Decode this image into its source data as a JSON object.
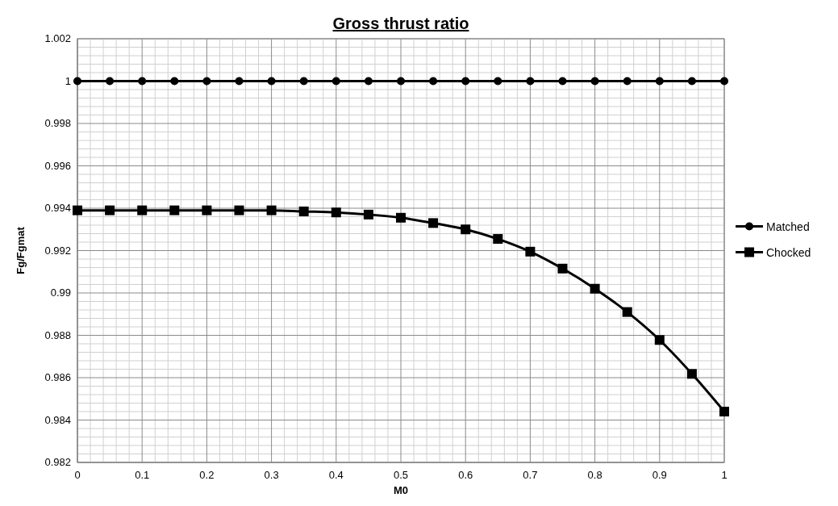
{
  "chart_data": {
    "type": "line",
    "title": "Gross thrust ratio",
    "xlabel": "M0",
    "ylabel": "Fg/Fgmat",
    "x": [
      0,
      0.05,
      0.1,
      0.15,
      0.2,
      0.25,
      0.3,
      0.35,
      0.4,
      0.45,
      0.5,
      0.55,
      0.6,
      0.65,
      0.7,
      0.75,
      0.8,
      0.85,
      0.9,
      0.95,
      1
    ],
    "series": [
      {
        "name": "Matched",
        "color": "#000000",
        "marker": "circle",
        "values": [
          1,
          1,
          1,
          1,
          1,
          1,
          1,
          1,
          1,
          1,
          1,
          1,
          1,
          1,
          1,
          1,
          1,
          1,
          1,
          1,
          1
        ]
      },
      {
        "name": "Chocked",
        "color": "#000000",
        "marker": "square",
        "values": [
          0.9939,
          0.9939,
          0.9939,
          0.9939,
          0.9939,
          0.9939,
          0.9939,
          0.99385,
          0.9938,
          0.9937,
          0.99355,
          0.9933,
          0.993,
          0.99255,
          0.99195,
          0.99115,
          0.9902,
          0.9891,
          0.98778,
          0.98618,
          0.9844
        ]
      }
    ],
    "xlim": [
      0,
      1
    ],
    "xticks": [
      0,
      0.1,
      0.2,
      0.3,
      0.4,
      0.5,
      0.6,
      0.7,
      0.8,
      0.9,
      1
    ],
    "ylim": [
      0.982,
      1.002
    ],
    "yticks": [
      0.982,
      0.984,
      0.986,
      0.988,
      0.99,
      0.992,
      0.994,
      0.996,
      0.998,
      1,
      1.002
    ],
    "grid": true,
    "legend": "right",
    "line_style": "solid"
  }
}
